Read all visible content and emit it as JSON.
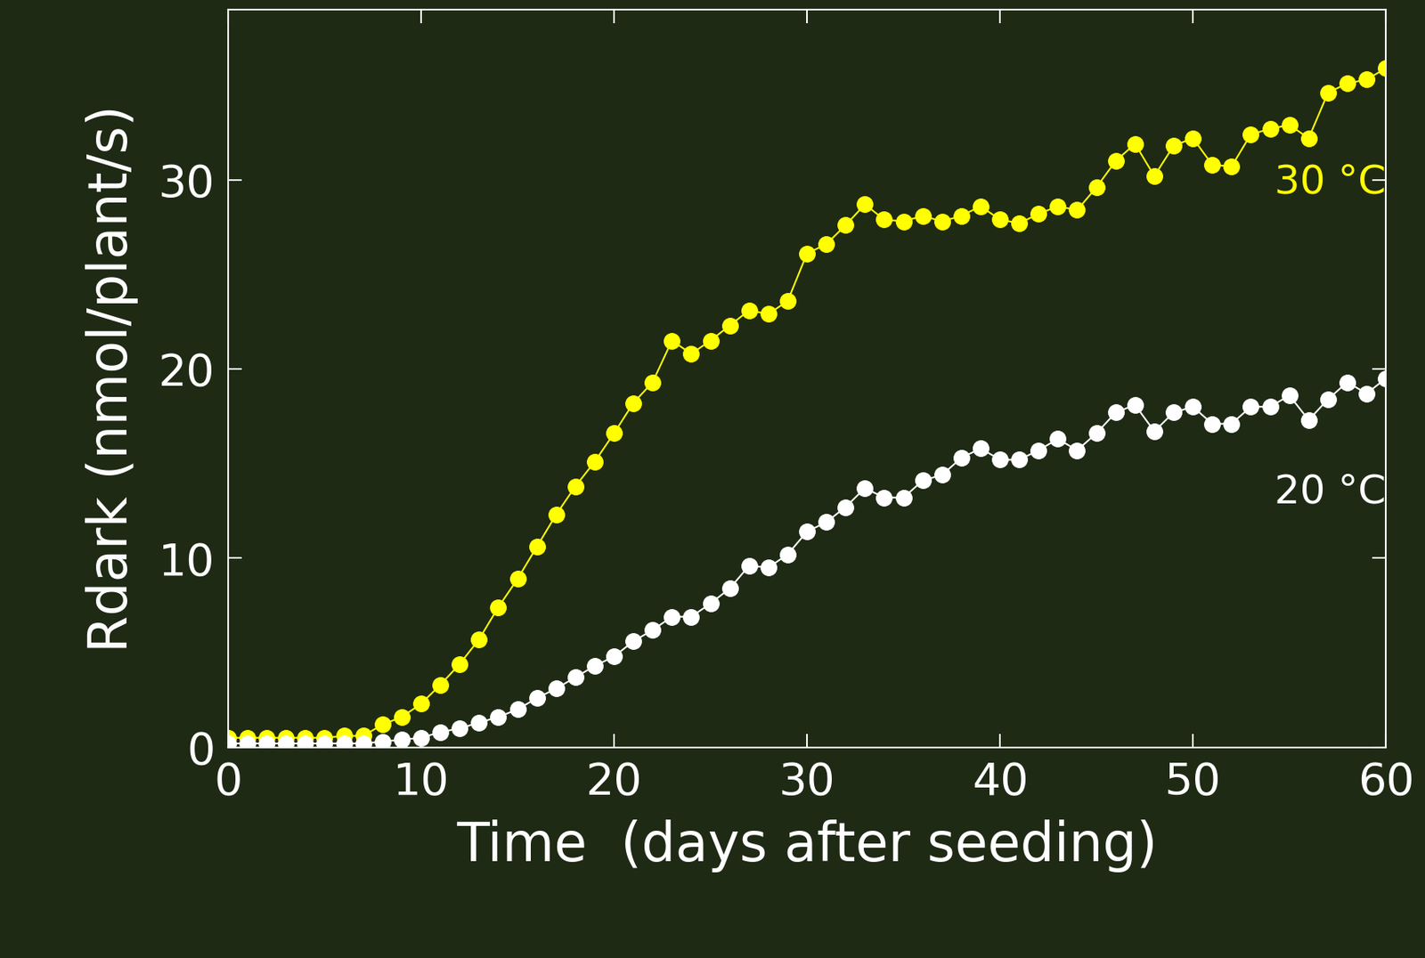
{
  "chart_data": {
    "type": "line",
    "x_label": "Time  (days after seeding)",
    "y_label": "Rdark (nmol/plant/s)",
    "x": [
      0,
      1,
      2,
      3,
      4,
      5,
      6,
      7,
      8,
      9,
      10,
      11,
      12,
      13,
      14,
      15,
      16,
      17,
      18,
      19,
      20,
      21,
      22,
      23,
      24,
      25,
      26,
      27,
      28,
      29,
      30,
      31,
      32,
      33,
      34,
      35,
      36,
      37,
      38,
      39,
      40,
      41,
      42,
      43,
      44,
      45,
      46,
      47,
      48,
      49,
      50,
      51,
      52,
      53,
      54,
      55,
      56,
      57,
      58,
      59,
      60
    ],
    "series": [
      {
        "name": "30 °C",
        "color": "#ffff00",
        "marker": "o",
        "line_style": "solid",
        "values": [
          0.5,
          0.5,
          0.5,
          0.5,
          0.5,
          0.5,
          0.6,
          0.6,
          1.2,
          1.6,
          2.3,
          3.3,
          4.4,
          5.7,
          7.4,
          8.9,
          10.6,
          12.3,
          13.8,
          15.1,
          16.6,
          18.2,
          19.3,
          21.5,
          20.8,
          21.5,
          22.3,
          23.1,
          22.9,
          23.6,
          26.1,
          26.6,
          27.6,
          28.7,
          27.9,
          27.8,
          28.1,
          27.8,
          28.1,
          28.6,
          27.9,
          27.7,
          28.2,
          28.6,
          28.4,
          29.6,
          31.0,
          31.9,
          30.2,
          31.8,
          32.2,
          30.8,
          30.7,
          32.4,
          32.7,
          32.9,
          32.2,
          34.6,
          35.1,
          35.3,
          35.9
        ]
      },
      {
        "name": "20 °C",
        "color": "#ffffff",
        "marker": "o",
        "line_style": "solid",
        "values": [
          0.2,
          0.2,
          0.2,
          0.2,
          0.2,
          0.2,
          0.2,
          0.2,
          0.3,
          0.4,
          0.5,
          0.8,
          1.0,
          1.3,
          1.6,
          2.0,
          2.6,
          3.1,
          3.7,
          4.3,
          4.8,
          5.6,
          6.2,
          6.9,
          6.9,
          7.6,
          8.4,
          9.6,
          9.5,
          10.2,
          11.4,
          11.9,
          12.7,
          13.7,
          13.2,
          13.2,
          14.1,
          14.4,
          15.3,
          15.8,
          15.2,
          15.2,
          15.7,
          16.3,
          15.7,
          16.6,
          17.7,
          18.1,
          16.7,
          17.7,
          18.0,
          17.1,
          17.1,
          18.0,
          18.0,
          18.6,
          17.3,
          18.4,
          19.3,
          18.7,
          19.5
        ]
      }
    ],
    "xlim": [
      0,
      60
    ],
    "xticks": [
      0,
      10,
      20,
      30,
      40,
      50,
      60
    ],
    "ylim": [
      0,
      39
    ],
    "yticks": [
      0,
      10,
      20,
      30
    ],
    "grid": false
  }
}
